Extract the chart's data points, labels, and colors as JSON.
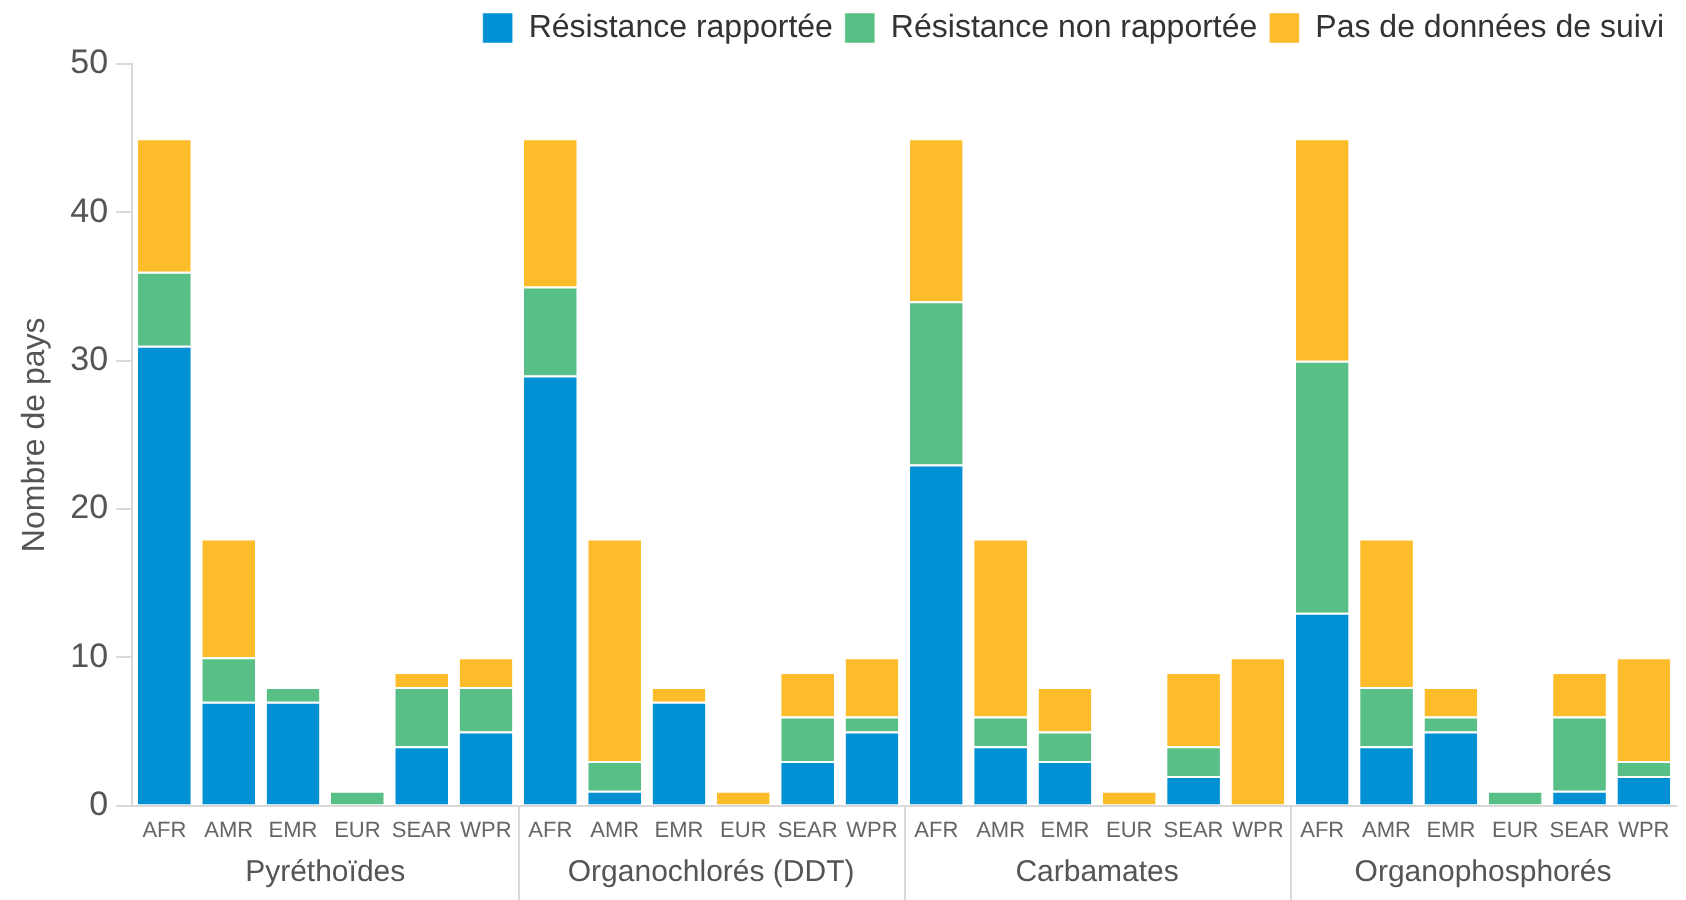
{
  "chart_data": {
    "type": "bar",
    "stacked": true,
    "ylabel": "Nombre de pays",
    "categories": [
      "AFR",
      "AMR",
      "EMR",
      "EUR",
      "SEAR",
      "WPR",
      "AFR",
      "AMR",
      "EMR",
      "EUR",
      "SEAR",
      "WPR",
      "AFR",
      "AMR",
      "EMR",
      "EUR",
      "SEAR",
      "WPR",
      "AFR",
      "AMR",
      "EMR",
      "EUR",
      "SEAR",
      "WPR"
    ],
    "series": [
      {
        "name": "Résistance rapportée",
        "color": "#0091d5",
        "values": [
          31,
          7,
          7,
          0,
          4,
          5,
          29,
          1,
          7,
          0,
          3,
          5,
          23,
          4,
          3,
          0,
          2,
          0,
          13,
          4,
          5,
          0,
          1,
          2
        ]
      },
      {
        "name": "Résistance non rapportée",
        "color": "#58bf87",
        "values": [
          5,
          3,
          1,
          1,
          4,
          3,
          6,
          2,
          0,
          0,
          3,
          1,
          11,
          2,
          2,
          0,
          2,
          0,
          17,
          4,
          1,
          1,
          5,
          1
        ]
      },
      {
        "name": "Pas de données de suivi",
        "color": "#fdbc2a",
        "values": [
          9,
          8,
          0,
          0,
          1,
          2,
          10,
          15,
          1,
          1,
          3,
          4,
          11,
          12,
          3,
          1,
          5,
          10,
          15,
          10,
          2,
          0,
          3,
          7
        ]
      }
    ],
    "annotations": [
      "Pyréthoïdes",
      "Organochlorés (DDT)",
      "Carbamates",
      "Organophosphorés"
    ],
    "ylim": [
      0,
      50
    ],
    "yticks": [
      0,
      10,
      20,
      30,
      40,
      50
    ],
    "grid": false,
    "legend": "top right"
  }
}
